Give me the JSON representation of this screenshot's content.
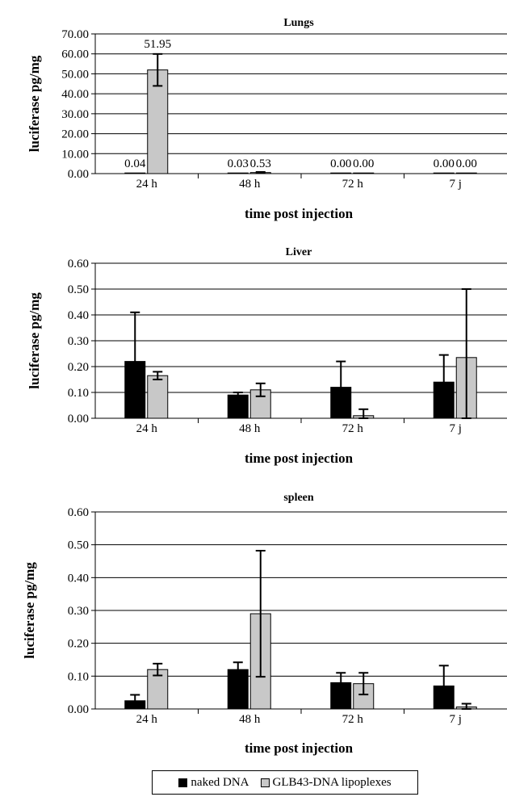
{
  "colors": {
    "naked": "#000000",
    "lipoplexes": "#c8c8c8",
    "grid": "#000000"
  },
  "legend": {
    "naked": "naked DNA",
    "lipoplexes": "GLB43-DNA lipoplexes"
  },
  "chart_data": [
    {
      "type": "bar",
      "title": "Lungs",
      "xlabel": "time post injection",
      "ylabel": "luciferase pg/mg",
      "categories": [
        "24 h",
        "48 h",
        "72 h",
        "7 j"
      ],
      "ylim": [
        0,
        70
      ],
      "yticks": [
        0,
        10,
        20,
        30,
        40,
        50,
        60,
        70
      ],
      "ytick_labels": [
        "0.00",
        "10.00",
        "20.00",
        "30.00",
        "40.00",
        "50.00",
        "60.00",
        "70.00"
      ],
      "grid": true,
      "series": [
        {
          "name": "naked DNA",
          "values": [
            0.04,
            0.03,
            0.0,
            0.0
          ],
          "errors": [
            0,
            0,
            0,
            0
          ],
          "labels": [
            "0.04",
            "0.03",
            "0.00",
            "0.00"
          ]
        },
        {
          "name": "GLB43-DNA lipoplexes",
          "values": [
            51.95,
            0.53,
            0.0,
            0.0
          ],
          "errors": [
            8,
            0.3,
            0,
            0
          ],
          "labels": [
            "51.95",
            "0.53",
            "0.00",
            "0.00"
          ]
        }
      ]
    },
    {
      "type": "bar",
      "title": "Liver",
      "xlabel": "time post injection",
      "ylabel": "luciferase pg/mg",
      "categories": [
        "24 h",
        "48 h",
        "72 h",
        "7 j"
      ],
      "ylim": [
        0,
        0.6
      ],
      "yticks": [
        0,
        0.1,
        0.2,
        0.3,
        0.4,
        0.5,
        0.6
      ],
      "ytick_labels": [
        "0.00",
        "0.10",
        "0.20",
        "0.30",
        "0.40",
        "0.50",
        "0.60"
      ],
      "grid": true,
      "series": [
        {
          "name": "naked DNA",
          "values": [
            0.22,
            0.09,
            0.12,
            0.14
          ],
          "errors": [
            0.19,
            0.01,
            0.1,
            0.105
          ]
        },
        {
          "name": "GLB43-DNA lipoplexes",
          "values": [
            0.165,
            0.11,
            0.01,
            0.235
          ],
          "errors": [
            0.015,
            0.025,
            0.025,
            0.265
          ]
        }
      ]
    },
    {
      "type": "bar",
      "title": "spleen",
      "xlabel": "time post injection",
      "ylabel": "luciferase pg/mg",
      "categories": [
        "24 h",
        "48 h",
        "72 h",
        "7 j"
      ],
      "ylim": [
        0,
        0.6
      ],
      "yticks": [
        0,
        0.1,
        0.2,
        0.3,
        0.4,
        0.5,
        0.6
      ],
      "ytick_labels": [
        "0.00",
        "0.10",
        "0.20",
        "0.30",
        "0.40",
        "0.50",
        "0.60"
      ],
      "grid": true,
      "series": [
        {
          "name": "naked DNA",
          "values": [
            0.025,
            0.12,
            0.08,
            0.07
          ],
          "errors": [
            0.018,
            0.022,
            0.03,
            0.062
          ]
        },
        {
          "name": "GLB43-DNA lipoplexes",
          "values": [
            0.12,
            0.29,
            0.077,
            0.006
          ],
          "errors": [
            0.018,
            0.192,
            0.033,
            0.01
          ]
        }
      ]
    }
  ]
}
